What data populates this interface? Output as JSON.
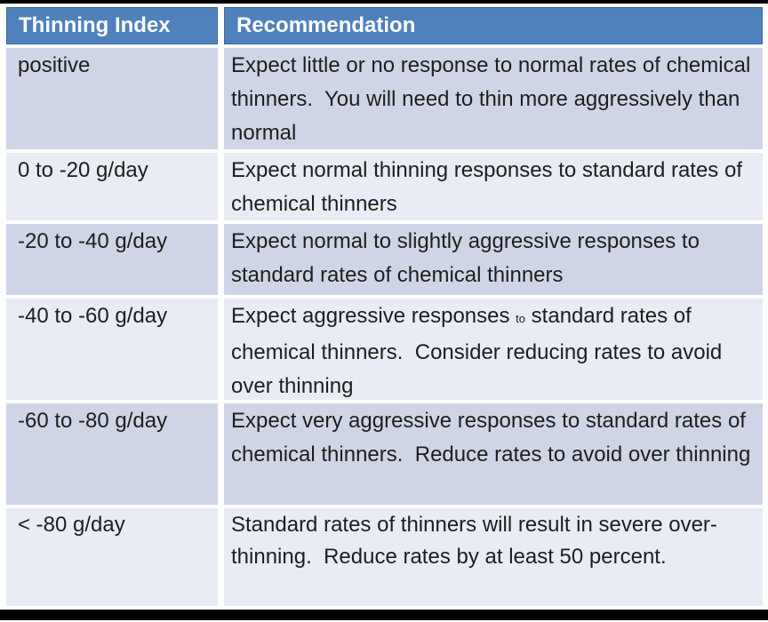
{
  "table": {
    "columns": [
      {
        "label": "Thinning Index"
      },
      {
        "label": "Recommendation"
      }
    ],
    "rows": [
      {
        "thinning_index": "positive",
        "recommendation": [
          {
            "text": "Expect little or no response to normal rates of chemical thinners.  You will need to thin more aggressively than normal"
          }
        ]
      },
      {
        "thinning_index": "0 to -20 g/day",
        "recommendation": [
          {
            "text": "Expect normal thinning responses to standard rates of chemical thinners"
          }
        ]
      },
      {
        "thinning_index": "-20 to -40 g/day",
        "recommendation": [
          {
            "text": "Expect normal to slightly aggressive responses to standard rates of chemical thinners"
          }
        ]
      },
      {
        "thinning_index": "-40 to -60 g/day",
        "recommendation": [
          {
            "text": "Expect aggressive responses "
          },
          {
            "text": "to",
            "small": true
          },
          {
            "text": " standard rates of chemical thinners.  Consider reducing rates to avoid over thinning"
          }
        ]
      },
      {
        "thinning_index": "-60 to -80 g/day",
        "recommendation": [
          {
            "text": "Expect very aggressive responses to standard rates of chemical thinners.  Reduce rates to avoid over thinning"
          }
        ]
      },
      {
        "thinning_index": "< -80 g/day",
        "recommendation": [
          {
            "text": "Standard rates of thinners will result in severe over-thinning.  Reduce rates by at least 50 percent."
          }
        ]
      }
    ]
  },
  "colors": {
    "header_bg": "#4F81BD",
    "header_text": "#FFFFFF",
    "band_dark": "#CFD5E6",
    "band_light": "#E9ECF4",
    "body_text": "#1E1E1E",
    "frame_bar": "#000000"
  }
}
